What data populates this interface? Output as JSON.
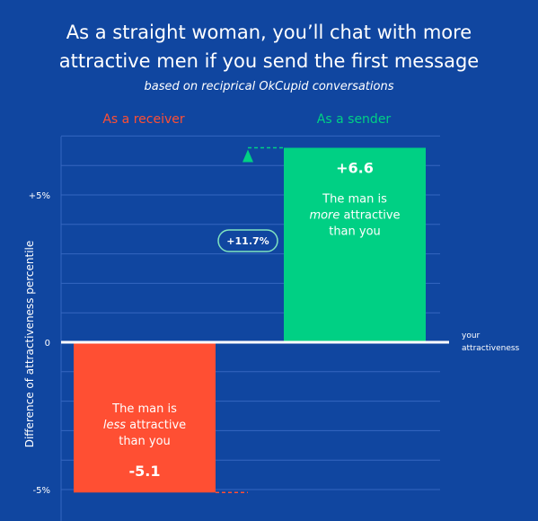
{
  "colors": {
    "background": "#1046a0",
    "receiver": "#ff4f33",
    "sender": "#00d084",
    "grid": "#3566c0",
    "zero_line": "#ffffff",
    "text": "#ffffff"
  },
  "title_line1": "As a straight woman, you’ll chat with more",
  "title_line2": "attractive men if you send the first message",
  "subtitle": "based on reciprical OkCupid conversations",
  "chart_data": {
    "type": "bar",
    "categories": [
      "As a receiver",
      "As a sender"
    ],
    "values": [
      -5.1,
      6.6
    ],
    "value_labels": [
      "-5.1",
      "+6.6"
    ],
    "bar_colors": [
      "#ff4f33",
      "#00d084"
    ],
    "bar_text": [
      {
        "line1": "The man is",
        "emph": "less",
        "rest": " attractive",
        "line3": "than you"
      },
      {
        "line1": "The man is",
        "emph": "more",
        "rest": " attractive",
        "line3": "than you"
      }
    ],
    "difference_label": "+11.7%",
    "ylabel": "Difference of attractiveness percentile",
    "yticks": [
      {
        "value": 5,
        "label": "+5%"
      },
      {
        "value": 0,
        "label": "0"
      },
      {
        "value": -5,
        "label": "-5%"
      }
    ],
    "ylim": [
      -5.9,
      7.0
    ],
    "zero_line_label": [
      "your",
      "attractiveness"
    ],
    "grid": true
  }
}
